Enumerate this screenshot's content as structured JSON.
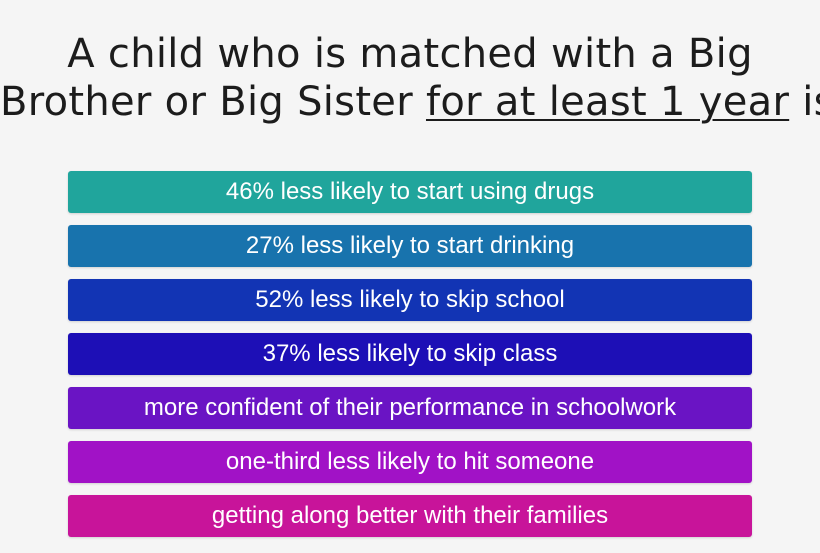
{
  "title": {
    "line1": "A child who is matched with a Big",
    "line2_start": "Brother or Big Sister ",
    "line2_underlined": "for at least 1 year",
    "line2_end": " is:"
  },
  "stats": [
    {
      "text": "46% less likely to start using drugs",
      "color": "#20a59c"
    },
    {
      "text": "27% less likely to start drinking",
      "color": "#1873ad"
    },
    {
      "text": "52% less likely to skip school",
      "color": "#1234b4"
    },
    {
      "text": "37% less likely to skip class",
      "color": "#1d0fb6"
    },
    {
      "text": "more confident of their performance in schoolwork",
      "color": "#6a14c4"
    },
    {
      "text": "one-third less likely to hit someone",
      "color": "#a112c6"
    },
    {
      "text": "getting along better with their families",
      "color": "#c8149a"
    }
  ]
}
